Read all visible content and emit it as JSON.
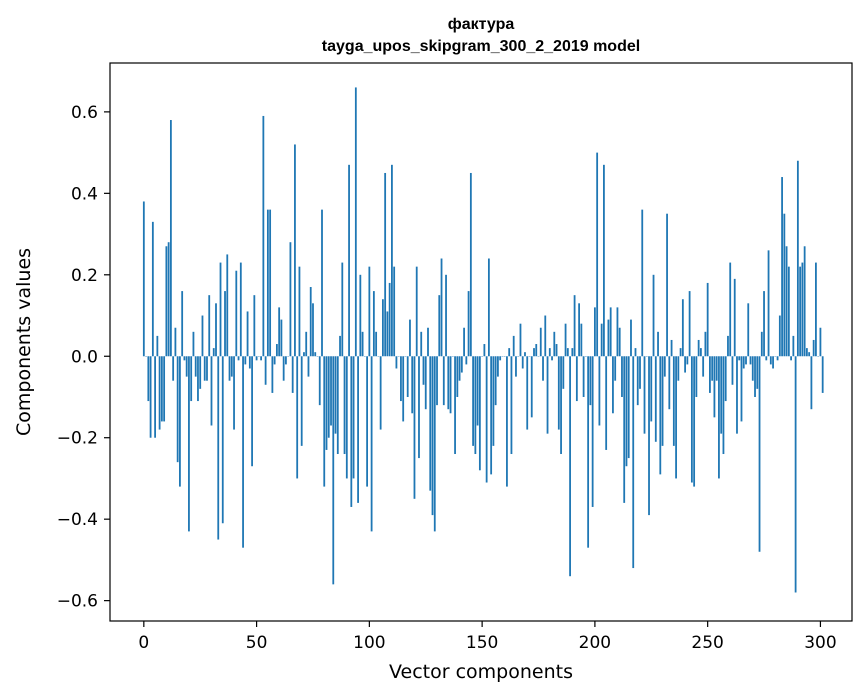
{
  "chart_data": {
    "type": "bar",
    "title": "фактура",
    "subtitle": "tayga_upos_skipgram_300_2_2019 model",
    "xlabel": "Vector components",
    "ylabel": "Components values",
    "xlim": [
      -15,
      314
    ],
    "ylim": [
      -0.65,
      0.72
    ],
    "xticks": [
      0,
      50,
      100,
      150,
      200,
      250,
      300
    ],
    "xtick_labels": [
      "0",
      "50",
      "100",
      "150",
      "200",
      "250",
      "300"
    ],
    "yticks": [
      -0.6,
      -0.4,
      -0.2,
      0.0,
      0.2,
      0.4,
      0.6
    ],
    "ytick_labels": [
      "−0.6",
      "−0.4",
      "−0.2",
      "0.0",
      "0.2",
      "0.4",
      "0.6"
    ],
    "color": "#1f77b4",
    "values": [
      0.38,
      0.0,
      -0.11,
      -0.2,
      0.33,
      -0.2,
      0.05,
      -0.18,
      -0.16,
      -0.16,
      0.27,
      0.28,
      0.58,
      -0.06,
      0.07,
      -0.26,
      -0.32,
      0.16,
      -0.01,
      -0.05,
      -0.43,
      -0.11,
      0.06,
      -0.05,
      -0.11,
      -0.08,
      0.1,
      -0.06,
      -0.06,
      0.15,
      -0.17,
      0.02,
      0.13,
      -0.45,
      0.23,
      -0.41,
      0.16,
      0.25,
      -0.06,
      -0.05,
      -0.18,
      0.21,
      -0.01,
      0.23,
      -0.47,
      -0.02,
      0.11,
      -0.03,
      -0.27,
      0.15,
      -0.01,
      0.0,
      -0.01,
      0.59,
      -0.07,
      0.36,
      0.36,
      -0.09,
      -0.02,
      0.03,
      0.12,
      0.09,
      -0.06,
      -0.02,
      0.0,
      0.28,
      -0.09,
      0.52,
      -0.3,
      0.22,
      -0.22,
      0.01,
      0.06,
      -0.05,
      0.17,
      0.13,
      0.01,
      0.0,
      -0.12,
      0.36,
      -0.32,
      -0.23,
      -0.2,
      -0.17,
      -0.56,
      -0.19,
      -0.24,
      0.05,
      0.23,
      -0.24,
      -0.3,
      0.47,
      -0.37,
      -0.3,
      0.66,
      -0.36,
      0.2,
      0.06,
      0.0,
      -0.32,
      0.22,
      -0.43,
      0.16,
      0.06,
      0.0,
      -0.18,
      0.14,
      0.45,
      0.11,
      0.18,
      0.47,
      0.22,
      -0.03,
      0.0,
      -0.11,
      -0.16,
      0.0,
      -0.1,
      0.09,
      -0.14,
      -0.35,
      0.22,
      -0.25,
      0.06,
      -0.07,
      -0.13,
      0.07,
      -0.33,
      -0.39,
      -0.43,
      -0.12,
      0.15,
      0.24,
      -0.12,
      0.2,
      -0.13,
      -0.14,
      0.0,
      -0.24,
      -0.1,
      -0.06,
      -0.04,
      0.07,
      -0.02,
      0.16,
      0.45,
      -0.22,
      -0.24,
      -0.17,
      -0.28,
      0.0,
      0.03,
      -0.31,
      0.24,
      -0.29,
      -0.22,
      -0.12,
      -0.05,
      -0.01,
      0.0,
      0.0,
      -0.32,
      0.02,
      -0.24,
      0.05,
      -0.05,
      0.0,
      0.08,
      -0.03,
      0.01,
      -0.18,
      0.0,
      -0.15,
      0.02,
      0.03,
      0.0,
      0.07,
      -0.06,
      0.1,
      -0.19,
      0.02,
      -0.01,
      0.06,
      0.03,
      -0.18,
      -0.24,
      -0.08,
      0.08,
      0.02,
      -0.54,
      0.02,
      0.15,
      -0.11,
      0.13,
      0.08,
      -0.1,
      0.0,
      -0.47,
      -0.12,
      -0.37,
      0.12,
      0.5,
      -0.17,
      0.08,
      0.47,
      -0.23,
      0.09,
      0.12,
      -0.14,
      -0.06,
      0.12,
      0.07,
      -0.1,
      -0.36,
      -0.27,
      -0.25,
      0.09,
      -0.52,
      0.02,
      -0.12,
      -0.08,
      0.36,
      -0.19,
      0.0,
      -0.39,
      -0.16,
      0.2,
      -0.21,
      0.06,
      -0.29,
      -0.22,
      -0.05,
      0.35,
      -0.13,
      0.04,
      -0.22,
      -0.3,
      -0.06,
      0.02,
      0.14,
      -0.04,
      -0.02,
      0.16,
      -0.31,
      -0.32,
      -0.1,
      0.04,
      0.02,
      -0.05,
      0.06,
      0.18,
      -0.09,
      -0.06,
      -0.15,
      -0.06,
      -0.3,
      -0.19,
      -0.24,
      -0.11,
      0.05,
      0.23,
      -0.07,
      0.19,
      -0.19,
      -0.01,
      -0.16,
      -0.03,
      -0.02,
      0.13,
      -0.02,
      -0.06,
      -0.1,
      -0.08,
      -0.48,
      0.06,
      0.16,
      -0.01,
      0.26,
      -0.02,
      -0.03,
      0.0,
      -0.01,
      0.1,
      0.44,
      0.35,
      0.27,
      0.22,
      -0.01,
      0.05,
      -0.58,
      0.48,
      0.22,
      0.23,
      0.27,
      0.02,
      0.01,
      -0.13,
      0.04,
      0.23,
      0.0,
      0.07,
      -0.09
    ]
  }
}
